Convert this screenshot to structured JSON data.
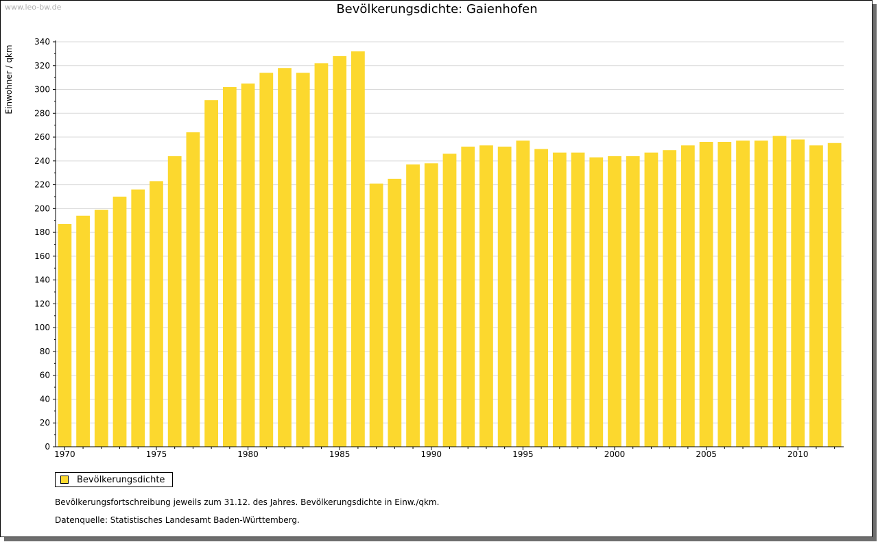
{
  "watermark": "www.leo-bw.de",
  "legend": {
    "label": "Bevölkerungsdichte"
  },
  "notes": {
    "line1": "Bevölkerungsfortschreibung jeweils zum 31.12. des Jahres. Bevölkerungsdichte in Einw./qkm.",
    "line2": "Datenquelle: Statistisches Landesamt Baden-Württemberg."
  },
  "chart_data": {
    "type": "bar",
    "title": "Bevölkerungsdichte: Gaienhofen",
    "ylabel": "Einwohner / qkm",
    "xlabel": "",
    "ylim": [
      0,
      340
    ],
    "ytick_step": 20,
    "xtick_labels": [
      "1970",
      "1975",
      "1980",
      "1985",
      "1990",
      "1995",
      "2000",
      "2005",
      "2010"
    ],
    "bar_color": "#fcd82e",
    "grid": true,
    "legend_position": "bottom-left",
    "categories": [
      1970,
      1971,
      1972,
      1973,
      1974,
      1975,
      1976,
      1977,
      1978,
      1979,
      1980,
      1981,
      1982,
      1983,
      1984,
      1985,
      1986,
      1987,
      1988,
      1989,
      1990,
      1991,
      1992,
      1993,
      1994,
      1995,
      1996,
      1997,
      1998,
      1999,
      2000,
      2001,
      2002,
      2003,
      2004,
      2005,
      2006,
      2007,
      2008,
      2009,
      2010,
      2011,
      2012
    ],
    "series": [
      {
        "name": "Bevölkerungsdichte",
        "values": [
          187,
          194,
          199,
          210,
          216,
          223,
          244,
          264,
          291,
          302,
          305,
          314,
          318,
          314,
          322,
          328,
          332,
          221,
          225,
          237,
          238,
          246,
          252,
          253,
          252,
          257,
          250,
          247,
          247,
          243,
          244,
          244,
          247,
          249,
          253,
          256,
          256,
          257,
          257,
          261,
          258,
          253,
          255
        ]
      }
    ]
  }
}
